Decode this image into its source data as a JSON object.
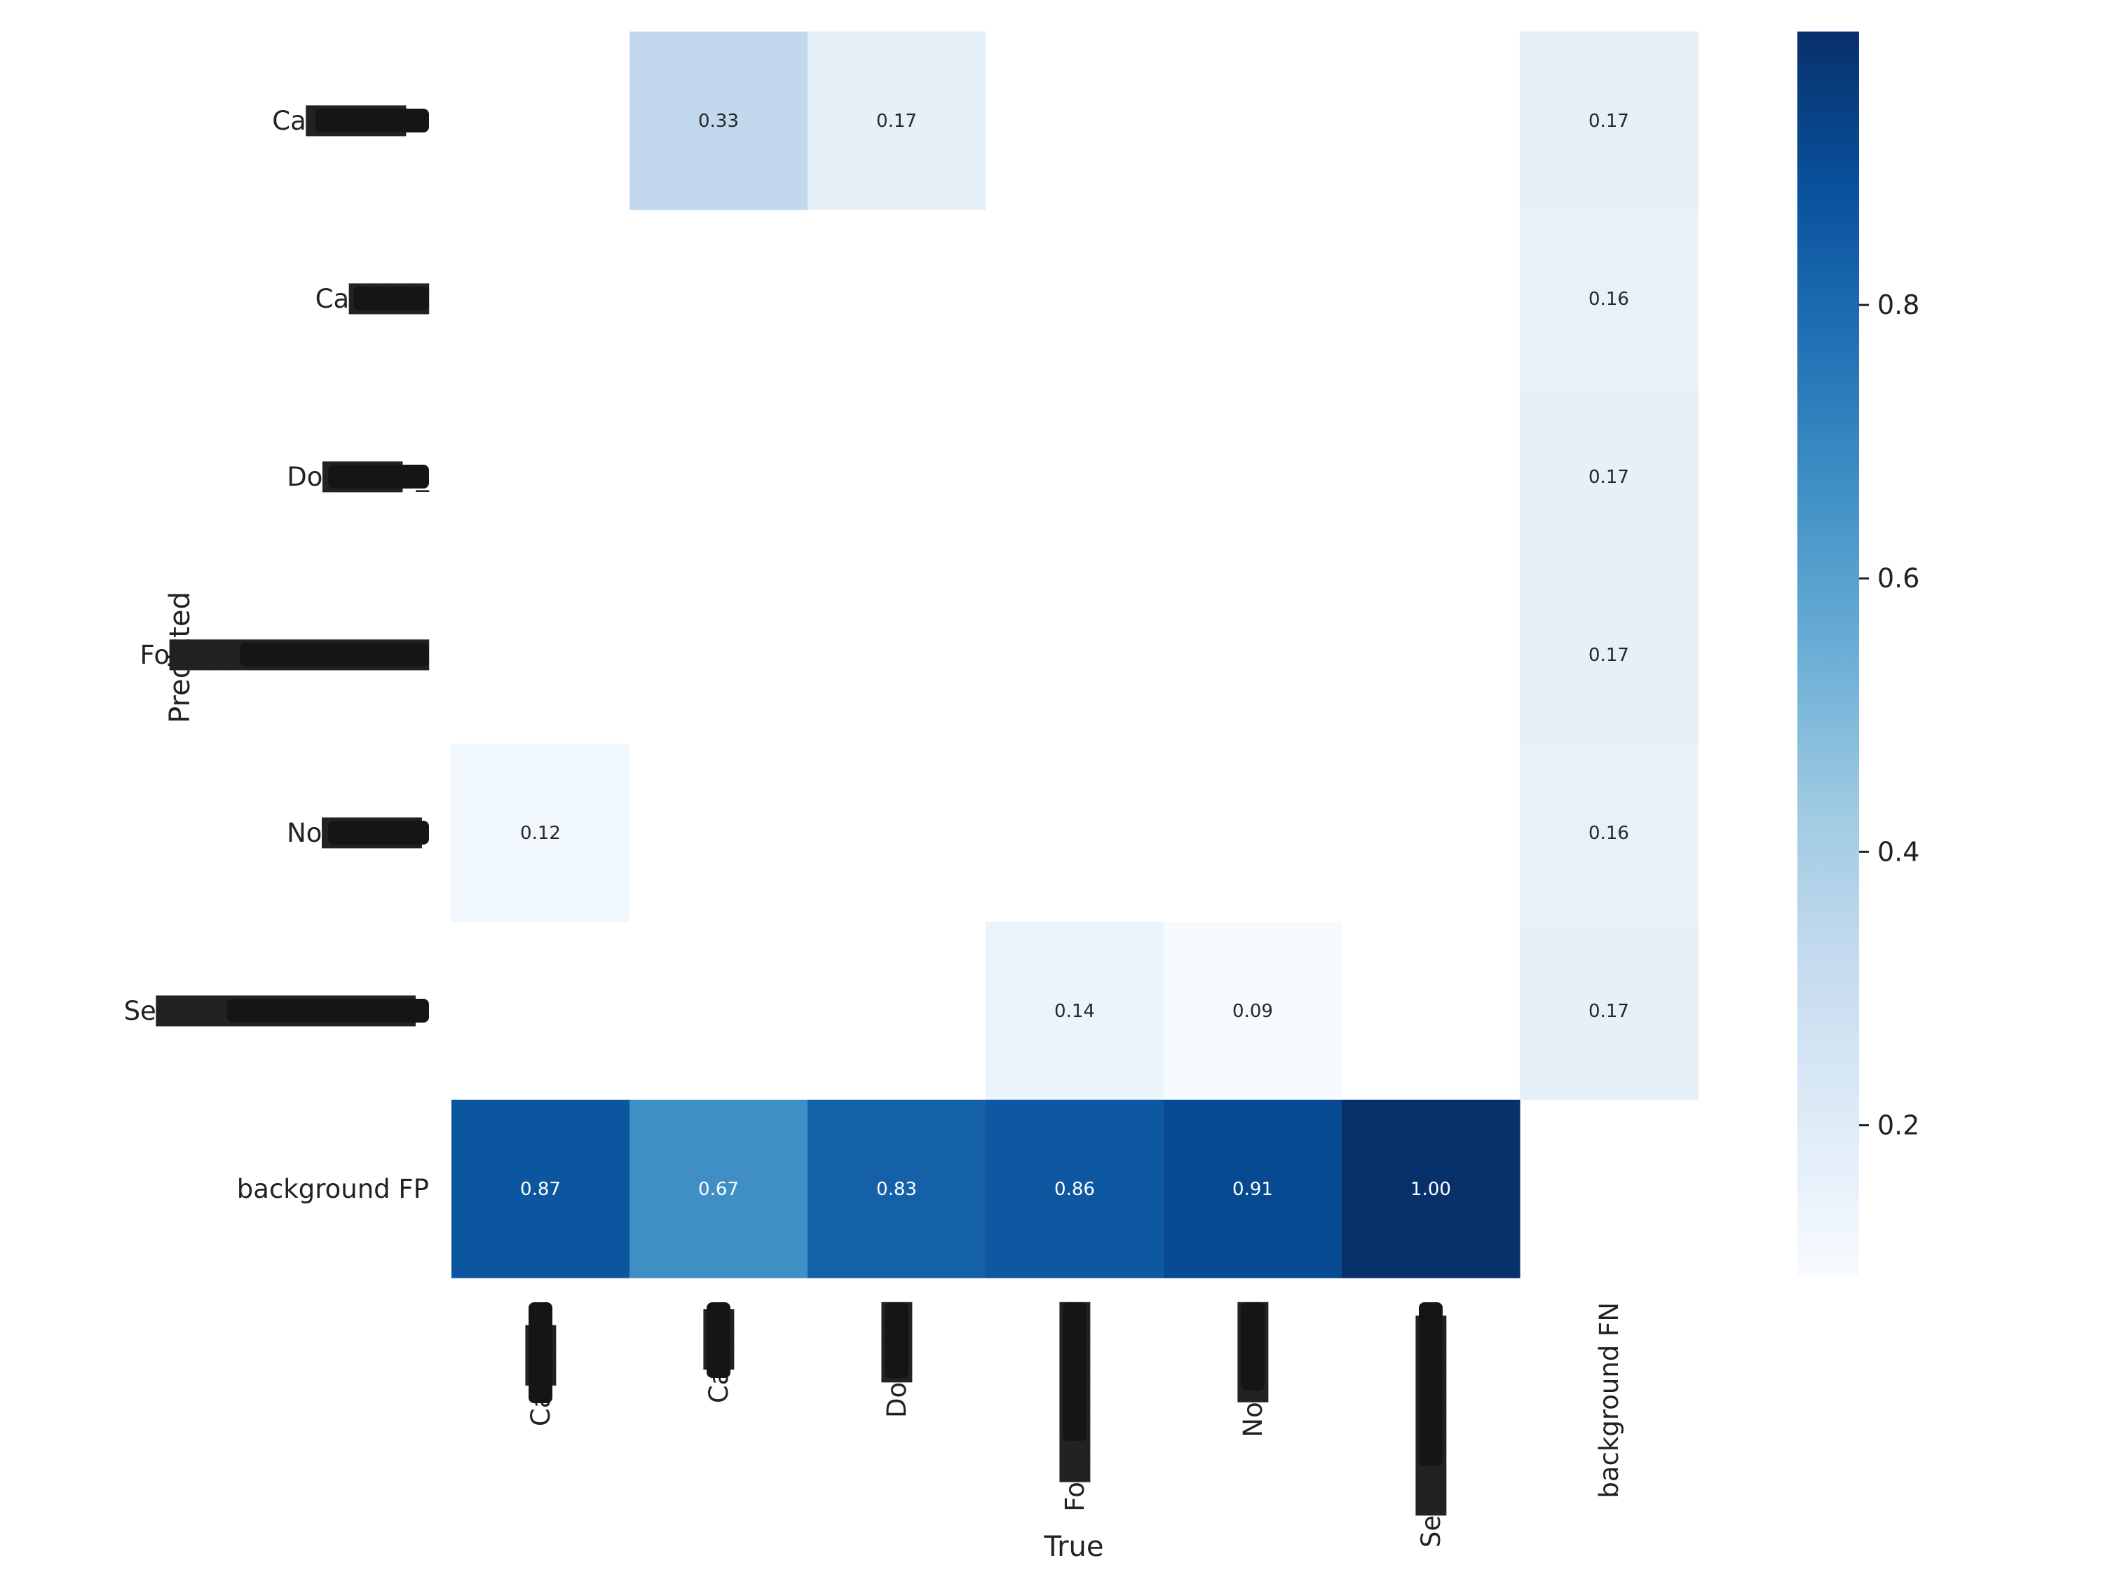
{
  "chart_data": {
    "type": "heatmap",
    "title": "",
    "xlabel": "True",
    "ylabel": "Predicted",
    "x_categories": [
      "Cal███ia",
      "Ca███l",
      "Do████",
      "Fo█████████",
      "No█████",
      "Se██████████s",
      "background FN"
    ],
    "y_categories": [
      "Ca█████ia",
      "Ca████",
      "Do████s_",
      "Fo█████████████",
      "No█████l",
      "Se█████████████s",
      "background FP"
    ],
    "x_redacted": [
      true,
      true,
      true,
      true,
      true,
      true,
      false
    ],
    "y_redacted": [
      true,
      true,
      true,
      true,
      true,
      true,
      false
    ],
    "values": [
      [
        null,
        0.33,
        0.17,
        null,
        null,
        null,
        0.17
      ],
      [
        null,
        null,
        null,
        null,
        null,
        null,
        0.16
      ],
      [
        null,
        null,
        null,
        null,
        null,
        null,
        0.17
      ],
      [
        null,
        null,
        null,
        null,
        null,
        null,
        0.17
      ],
      [
        0.12,
        null,
        null,
        null,
        null,
        null,
        0.16
      ],
      [
        null,
        null,
        null,
        0.14,
        0.09,
        null,
        0.17
      ],
      [
        0.87,
        0.67,
        0.83,
        0.86,
        0.91,
        1.0,
        null
      ]
    ],
    "value_format": "0.00",
    "colormap": "Blues",
    "color_range": [
      0.09,
      1.0
    ],
    "colorbar": {
      "ticks": [
        0.2,
        0.4,
        0.6,
        0.8
      ],
      "tick_labels": [
        "0.2",
        "0.4",
        "0.6",
        "0.8"
      ]
    },
    "grid": false,
    "legend": "colorbar-right"
  }
}
